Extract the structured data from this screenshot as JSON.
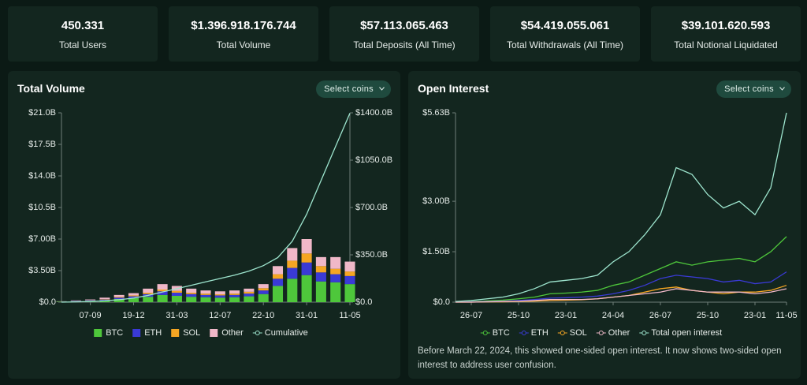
{
  "stats": [
    {
      "value": "450.331",
      "label": "Total Users"
    },
    {
      "value": "$1.396.918.176.744",
      "label": "Total Volume"
    },
    {
      "value": "$57.113.065.463",
      "label": "Total Deposits (All Time)"
    },
    {
      "value": "$54.419.055.061",
      "label": "Total Withdrawals (All Time)"
    },
    {
      "value": "$39.101.620.593",
      "label": "Total Notional Liquidated"
    }
  ],
  "chart_data": [
    {
      "type": "bar",
      "stacked": true,
      "title": "Total Volume",
      "button": "Select coins",
      "categories": [
        null,
        null,
        "07-09",
        null,
        null,
        "19-12",
        null,
        null,
        "31-03",
        null,
        null,
        "12-07",
        null,
        null,
        "22-10",
        null,
        null,
        "31-01",
        null,
        null,
        "11-05"
      ],
      "series": [
        {
          "name": "BTC",
          "color": "#4ec73b",
          "values": [
            0.05,
            0.1,
            0.15,
            0.2,
            0.35,
            0.45,
            0.6,
            0.8,
            0.7,
            0.6,
            0.55,
            0.5,
            0.55,
            0.65,
            0.9,
            1.8,
            2.6,
            3.0,
            2.3,
            2.2,
            2.0
          ]
        },
        {
          "name": "ETH",
          "color": "#3a3ad6",
          "values": [
            0.02,
            0.04,
            0.06,
            0.1,
            0.15,
            0.2,
            0.3,
            0.4,
            0.35,
            0.3,
            0.25,
            0.25,
            0.25,
            0.3,
            0.4,
            0.8,
            1.2,
            1.4,
            1.0,
            0.9,
            0.9
          ]
        },
        {
          "name": "SOL",
          "color": "#f5a623",
          "values": [
            0.01,
            0.01,
            0.02,
            0.05,
            0.08,
            0.1,
            0.15,
            0.2,
            0.2,
            0.15,
            0.15,
            0.12,
            0.15,
            0.2,
            0.25,
            0.5,
            0.8,
            1.0,
            0.7,
            0.6,
            0.5
          ]
        },
        {
          "name": "Other",
          "color": "#f0b8c8",
          "values": [
            0.02,
            0.05,
            0.07,
            0.15,
            0.22,
            0.25,
            0.45,
            0.6,
            0.55,
            0.45,
            0.35,
            0.33,
            0.35,
            0.35,
            0.45,
            0.9,
            1.4,
            1.6,
            1.0,
            1.3,
            1.1
          ]
        },
        {
          "name": "Cumulative",
          "color": "#9ee6cf",
          "type": "line",
          "axis": "y2",
          "values": [
            0,
            2,
            5,
            10,
            18,
            30,
            50,
            75,
            100,
            125,
            150,
            175,
            200,
            230,
            270,
            330,
            450,
            650,
            900,
            1150,
            1397
          ]
        }
      ],
      "ylim": [
        0,
        21
      ],
      "yticks": [
        {
          "value": 0,
          "label": "$0.0"
        },
        {
          "value": 3.5,
          "label": "$3.50B"
        },
        {
          "value": 7,
          "label": "$7.00B"
        },
        {
          "value": 10.5,
          "label": "$10.5B"
        },
        {
          "value": 14,
          "label": "$14.0B"
        },
        {
          "value": 17.5,
          "label": "$17.5B"
        },
        {
          "value": 21,
          "label": "$21.0B"
        }
      ],
      "y2lim": [
        0,
        1400
      ],
      "y2ticks": [
        {
          "value": 0,
          "label": "$0.0"
        },
        {
          "value": 350,
          "label": "$350.0B"
        },
        {
          "value": 700,
          "label": "$700.0B"
        },
        {
          "value": 1050,
          "label": "$1050.0B"
        },
        {
          "value": 1400,
          "label": "$1400.0B"
        }
      ]
    },
    {
      "type": "line",
      "title": "Open Interest",
      "button": "Select coins",
      "categories": [
        null,
        "26-07",
        null,
        null,
        "25-10",
        null,
        null,
        "23-01",
        null,
        null,
        "24-04",
        null,
        null,
        "26-07",
        null,
        null,
        "25-10",
        null,
        null,
        "23-01",
        null,
        "11-05"
      ],
      "series": [
        {
          "name": "BTC",
          "color": "#4ec73b",
          "values": [
            0.01,
            0.02,
            0.04,
            0.06,
            0.1,
            0.15,
            0.25,
            0.27,
            0.3,
            0.35,
            0.5,
            0.6,
            0.8,
            1.0,
            1.2,
            1.1,
            1.2,
            1.25,
            1.3,
            1.2,
            1.5,
            1.95
          ]
        },
        {
          "name": "ETH",
          "color": "#3a3ad6",
          "values": [
            0,
            0.01,
            0.02,
            0.03,
            0.05,
            0.08,
            0.12,
            0.13,
            0.15,
            0.18,
            0.25,
            0.35,
            0.5,
            0.7,
            0.8,
            0.75,
            0.7,
            0.6,
            0.65,
            0.55,
            0.6,
            0.9
          ]
        },
        {
          "name": "SOL",
          "color": "#f5a623",
          "values": [
            0,
            0,
            0.01,
            0.01,
            0.02,
            0.03,
            0.05,
            0.06,
            0.07,
            0.1,
            0.15,
            0.2,
            0.3,
            0.4,
            0.45,
            0.35,
            0.3,
            0.25,
            0.3,
            0.3,
            0.35,
            0.5
          ]
        },
        {
          "name": "Other",
          "color": "#f0b8c8",
          "values": [
            0,
            0,
            0.01,
            0.02,
            0.03,
            0.05,
            0.08,
            0.08,
            0.08,
            0.1,
            0.15,
            0.2,
            0.25,
            0.3,
            0.4,
            0.35,
            0.3,
            0.3,
            0.3,
            0.25,
            0.3,
            0.4
          ]
        },
        {
          "name": "Total open interest",
          "color": "#9ee6cf",
          "values": [
            0.02,
            0.05,
            0.1,
            0.15,
            0.25,
            0.4,
            0.6,
            0.65,
            0.7,
            0.8,
            1.2,
            1.5,
            2.0,
            2.6,
            4.0,
            3.8,
            3.2,
            2.8,
            3.0,
            2.6,
            3.4,
            5.63
          ]
        }
      ],
      "ylim": [
        0,
        5.63
      ],
      "yticks": [
        {
          "value": 0,
          "label": "$0.0"
        },
        {
          "value": 1.5,
          "label": "$1.50B"
        },
        {
          "value": 3,
          "label": "$3.00B"
        },
        {
          "value": 5.63,
          "label": "$5.63B"
        }
      ],
      "note": "Before March 22, 2024, this showed one-sided open interest. It now shows two-sided open interest to address user confusion."
    }
  ]
}
